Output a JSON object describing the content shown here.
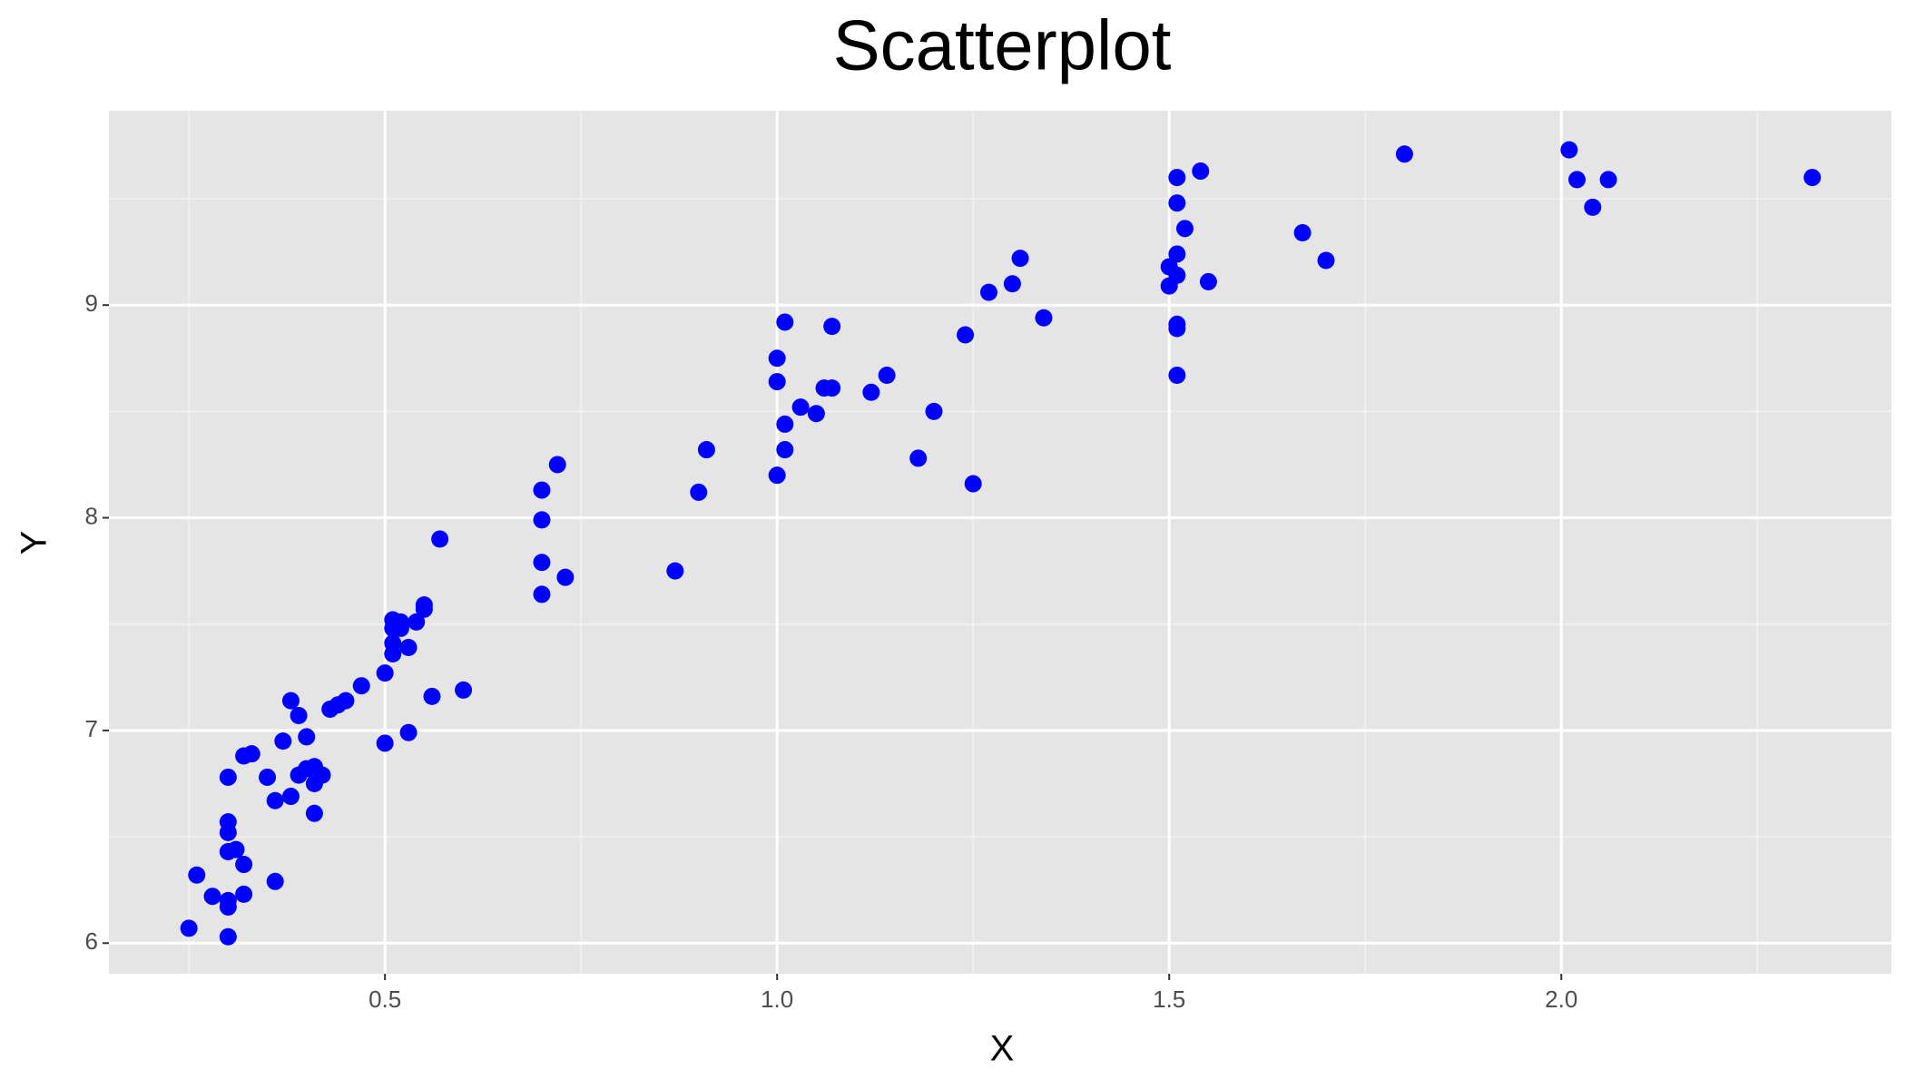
{
  "chart_data": {
    "type": "scatter",
    "title": "Scatterplot",
    "x_label": "X",
    "y_label": "Y",
    "color": "#0000ff",
    "xlim": [
      0.148,
      2.421
    ],
    "ylim": [
      5.856,
      9.914
    ],
    "xticks": [
      {
        "value": 0.5,
        "label": "0.5"
      },
      {
        "value": 1,
        "label": "1.0"
      },
      {
        "value": 1.5,
        "label": "1.5"
      },
      {
        "value": 2,
        "label": "2.0"
      }
    ],
    "yticks": [
      6,
      7,
      8,
      9
    ],
    "xminor": [
      0.25,
      0.75,
      1.25,
      1.75,
      2.25
    ],
    "yminor": [
      6.5,
      7.5,
      8.5,
      9.5
    ],
    "grid": true,
    "x": [
      0.25,
      0.26,
      0.28,
      0.3,
      0.3,
      0.3,
      0.3,
      0.31,
      0.32,
      0.32,
      0.3,
      0.3,
      0.3,
      0.32,
      0.33,
      0.35,
      0.36,
      0.36,
      0.37,
      0.38,
      0.38,
      0.39,
      0.39,
      0.4,
      0.4,
      0.41,
      0.41,
      0.41,
      0.42,
      0.43,
      0.44,
      0.45,
      0.47,
      0.5,
      0.5,
      0.51,
      0.51,
      0.51,
      0.51,
      0.52,
      0.52,
      0.53,
      0.53,
      0.54,
      0.55,
      0.55,
      0.56,
      0.57,
      0.6,
      0.7,
      0.7,
      0.7,
      0.7,
      0.72,
      0.73,
      0.87,
      0.9,
      0.91,
      1.0,
      1.0,
      1.0,
      1.01,
      1.01,
      1.01,
      1.03,
      1.05,
      1.06,
      1.07,
      1.07,
      1.12,
      1.14,
      1.18,
      1.2,
      1.24,
      1.25,
      1.27,
      1.3,
      1.31,
      1.34,
      1.5,
      1.5,
      1.51,
      1.51,
      1.51,
      1.51,
      1.51,
      1.51,
      1.51,
      1.52,
      1.54,
      1.55,
      1.67,
      1.7,
      1.8,
      2.01,
      2.02,
      2.04,
      2.06,
      2.32
    ],
    "y": [
      6.07,
      6.32,
      6.22,
      6.03,
      6.17,
      6.2,
      6.43,
      6.44,
      6.37,
      6.23,
      6.52,
      6.57,
      6.78,
      6.88,
      6.89,
      6.78,
      6.67,
      6.29,
      6.95,
      7.14,
      6.69,
      7.07,
      6.79,
      6.97,
      6.82,
      6.83,
      6.75,
      6.61,
      6.79,
      7.1,
      7.12,
      7.14,
      7.21,
      7.27,
      6.94,
      7.36,
      7.41,
      7.48,
      7.52,
      7.48,
      7.51,
      7.39,
      6.99,
      7.51,
      7.57,
      7.59,
      7.16,
      7.9,
      7.19,
      8.13,
      7.99,
      7.79,
      7.64,
      8.25,
      7.72,
      7.75,
      8.12,
      8.32,
      8.75,
      8.64,
      8.2,
      8.92,
      8.44,
      8.32,
      8.52,
      8.49,
      8.61,
      8.61,
      8.9,
      8.59,
      8.67,
      8.28,
      8.5,
      8.86,
      8.16,
      9.06,
      9.1,
      9.22,
      8.94,
      9.09,
      9.18,
      9.14,
      9.24,
      9.48,
      9.6,
      8.91,
      8.89,
      8.67,
      9.36,
      9.63,
      9.11,
      9.34,
      9.21,
      9.71,
      9.73,
      9.59,
      9.46,
      9.59,
      9.6
    ]
  }
}
